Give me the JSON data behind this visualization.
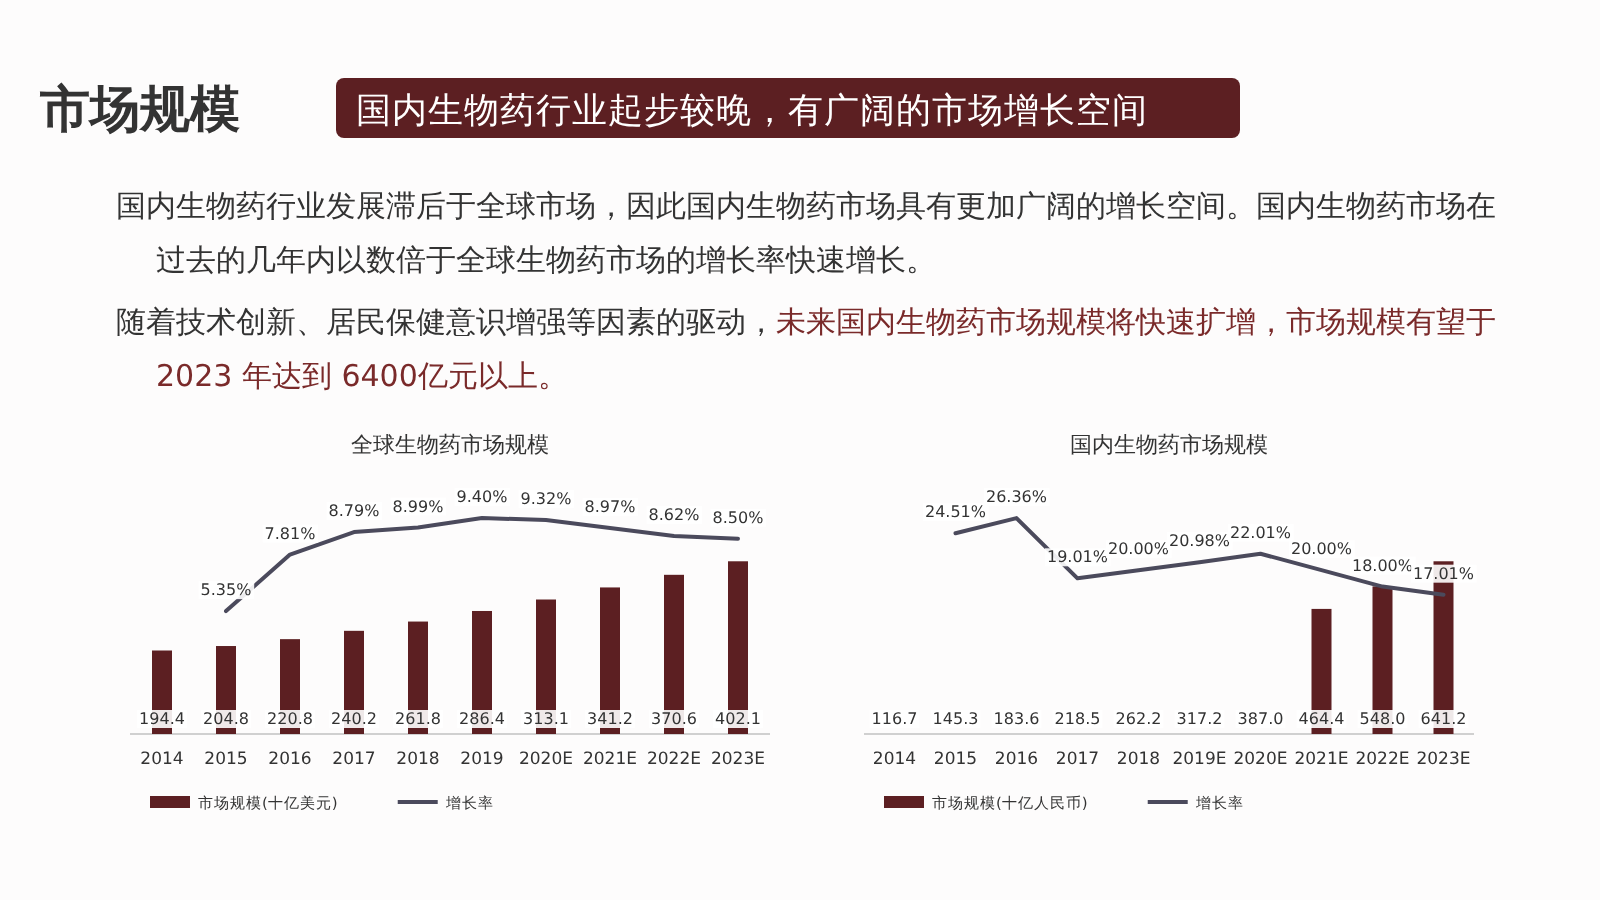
{
  "chart_data": [
    {
      "type": "other",
      "title": "市场规模",
      "subtitle": "国内生物药行业起步较晚，有广阔的市场增长空间",
      "annotations": [
        "国内生物药行业发展滞后于全球市场，因此国内生物药市场具有更加广阔的增长空间。国内生物药市场在过去的几年内以数倍于全球生物药市场的增长率快速增长。",
        "随着技术创新、居民保健意识增强等因素的驱动，",
        "未来国内生物药市场规模将快速扩增，市场规模有望于 2023 年达到 6400亿元以上。"
      ]
    },
    {
      "type": "bar",
      "title": "全球生物药市场规模",
      "categories": [
        "2014",
        "2015",
        "2016",
        "2017",
        "2018",
        "2019",
        "2020E",
        "2021E",
        "2022E",
        "2023E"
      ],
      "tick_labels": "x",
      "legend": "bottom left",
      "grid": false,
      "series": [
        {
          "name": "市场规模(十亿美元)",
          "type": "bar",
          "color": "#5c1f22",
          "values": [
            194.4,
            204.8,
            220.8,
            240.2,
            261.8,
            286.4,
            313.1,
            341.2,
            370.6,
            402.1
          ],
          "value_labels": [
            "194.4",
            "204.8",
            "220.8",
            "240.2",
            "261.8",
            "286.4",
            "313.1",
            "341.2",
            "370.6",
            "402.1"
          ]
        },
        {
          "name": "增长率",
          "type": "line",
          "axis": "y2",
          "color": "#4b4a5c",
          "values": [
            null,
            5.35,
            7.81,
            8.79,
            8.99,
            9.4,
            9.32,
            8.97,
            8.62,
            8.5
          ],
          "value_labels": [
            null,
            "5.35%",
            "7.81%",
            "8.79%",
            "8.99%",
            "9.40%",
            "9.32%",
            "8.97%",
            "8.62%",
            "8.50%"
          ]
        }
      ]
    },
    {
      "type": "bar",
      "title": "国内生物药市场规模",
      "categories": [
        "2014",
        "2015",
        "2016",
        "2017",
        "2018",
        "2019E",
        "2020E",
        "2021E",
        "2022E",
        "2023E"
      ],
      "tick_labels": "x",
      "legend": "bottom left",
      "grid": false,
      "series": [
        {
          "name": "市场规模(十亿人民币)",
          "type": "bar",
          "color": "#5c1f22",
          "values": [
            null,
            null,
            null,
            null,
            null,
            null,
            null,
            464.4,
            548.0,
            641.2
          ],
          "value_labels": [
            "116.7",
            "145.3",
            "183.6",
            "218.5",
            "262.2",
            "317.2",
            "387.0",
            "464.4",
            "548.0",
            "641.2"
          ]
        },
        {
          "name": "增长率",
          "type": "line",
          "axis": "y2",
          "color": "#4b4a5c",
          "values": [
            null,
            24.51,
            26.36,
            19.01,
            20.0,
            20.98,
            22.01,
            20.0,
            18.0,
            17.01
          ],
          "value_labels": [
            null,
            "24.51%",
            "26.36%",
            "19.01%",
            "20.00%",
            "20.98%",
            "22.01%",
            "20.00%",
            "18.00%",
            "17.01%"
          ]
        }
      ]
    }
  ]
}
